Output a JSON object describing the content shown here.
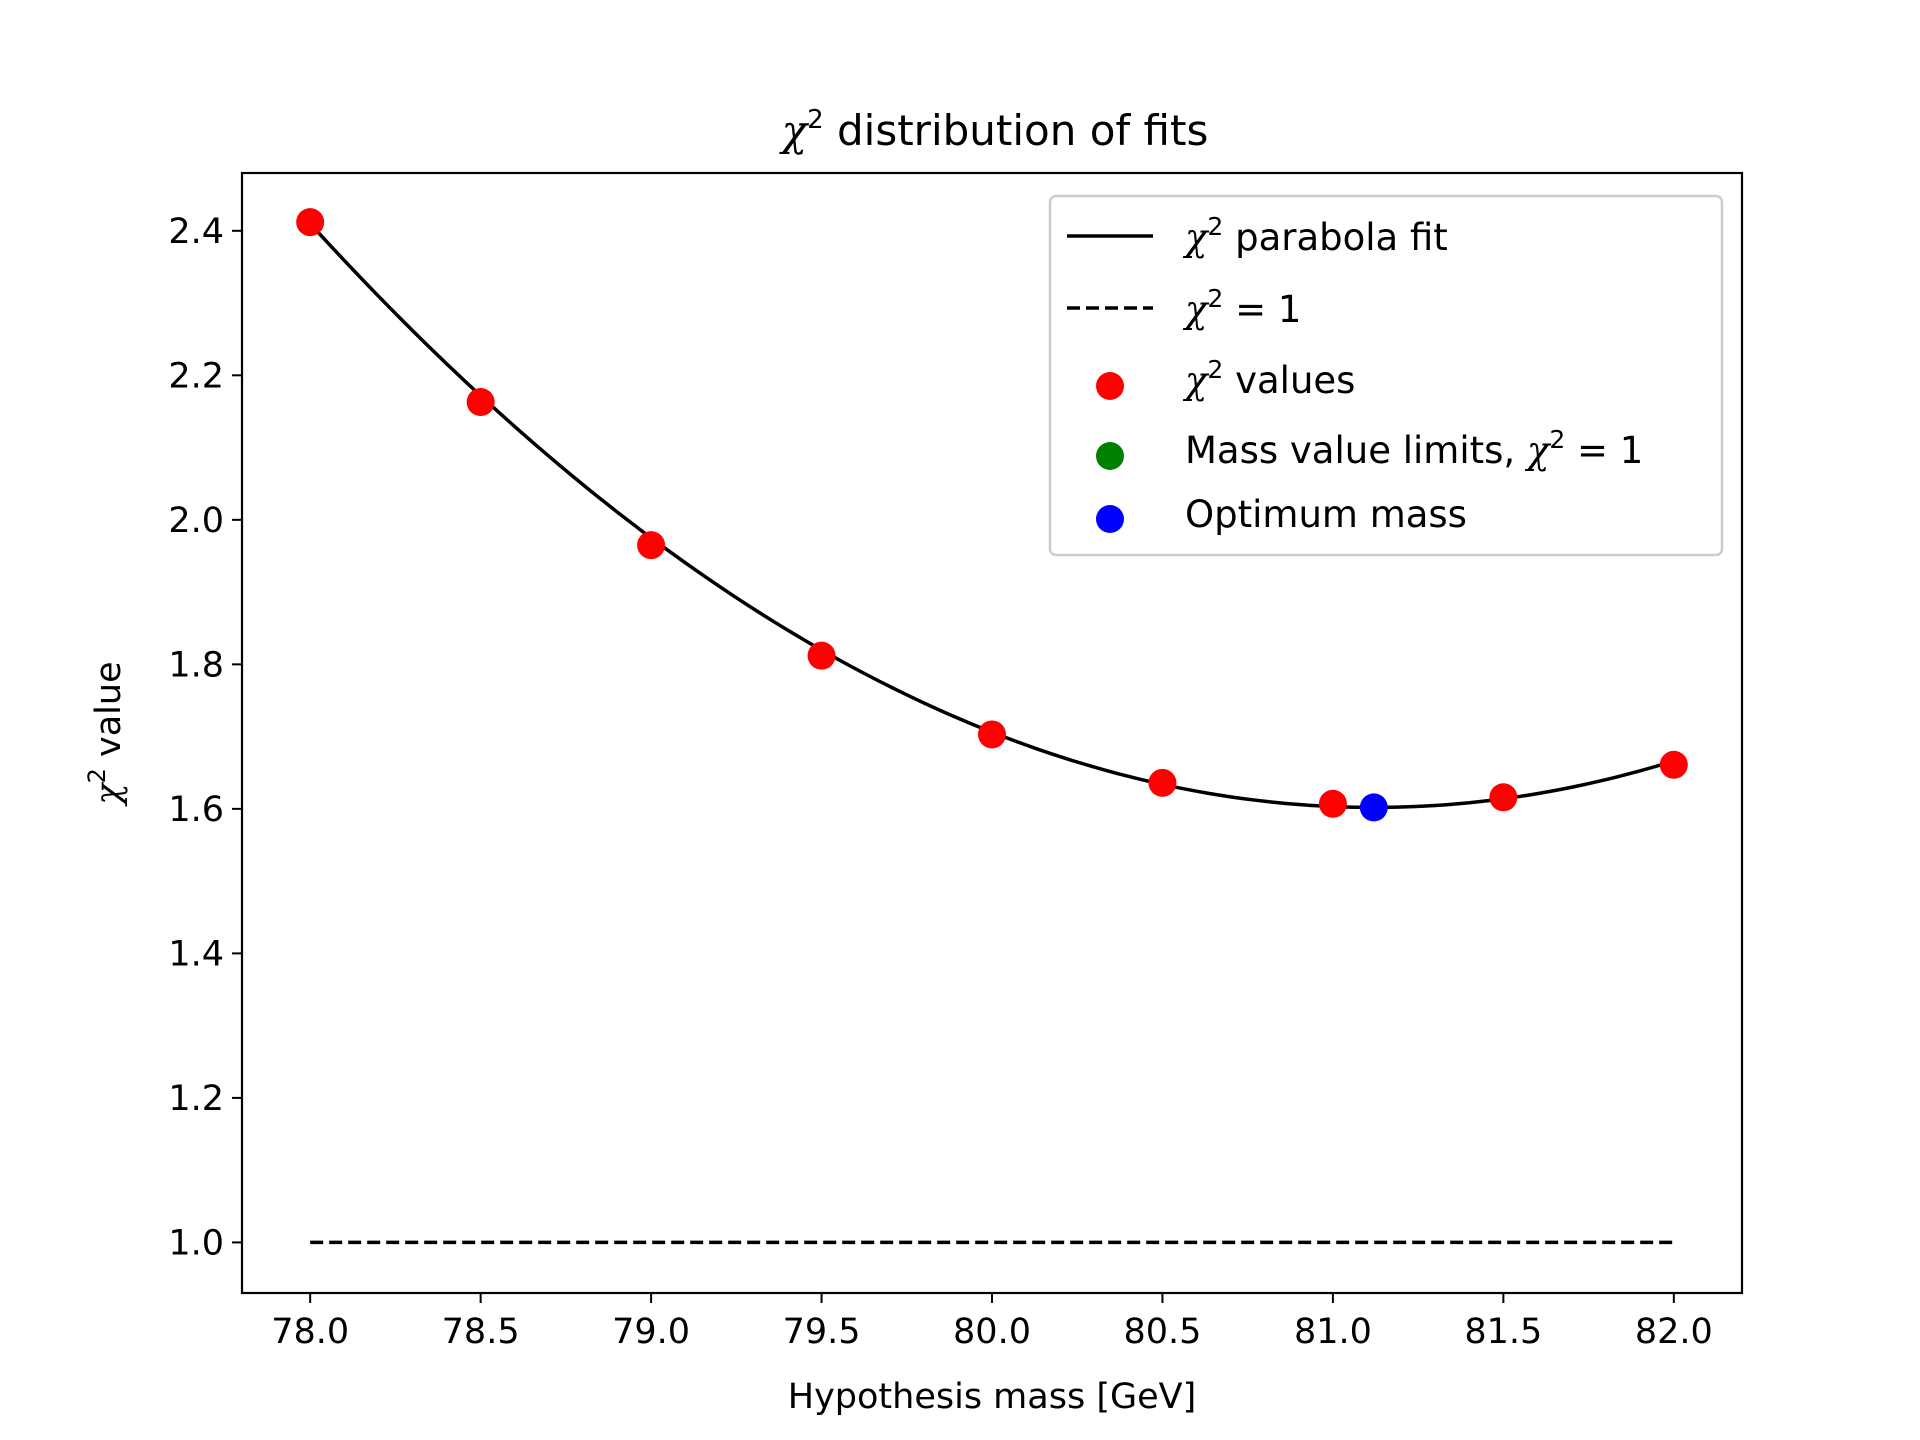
{
  "chart_data": {
    "type": "scatter",
    "title": {
      "symbol": "χ",
      "superscript": "2",
      "text": " distribution of fits"
    },
    "xlabel": "Hypothesis mass [GeV]",
    "ylabel": {
      "symbol": "χ",
      "superscript": "2",
      "text": " value"
    },
    "xlim": [
      77.8,
      82.2
    ],
    "ylim": [
      0.93,
      2.48
    ],
    "x_ticks": [
      78.0,
      78.5,
      79.0,
      79.5,
      80.0,
      80.5,
      81.0,
      81.5,
      82.0
    ],
    "x_tick_labels": [
      "78.0",
      "78.5",
      "79.0",
      "79.5",
      "80.0",
      "80.5",
      "81.0",
      "81.5",
      "82.0"
    ],
    "y_ticks": [
      1.0,
      1.2,
      1.4,
      1.6,
      1.8,
      2.0,
      2.2,
      2.4
    ],
    "y_tick_labels": [
      "1.0",
      "1.2",
      "1.4",
      "1.6",
      "1.8",
      "2.0",
      "2.2",
      "2.4"
    ],
    "grid": false,
    "legend_position": "top-right",
    "series": [
      {
        "name": "parabola fit",
        "legend": {
          "symbol": "χ",
          "superscript": "2",
          "text": " parabola fit"
        },
        "kind": "line",
        "style": "solid",
        "color": "#000000",
        "fit": {
          "vertex_x": 81.12,
          "vertex_y": 1.602,
          "curvature": 0.083
        },
        "x_range": [
          78.0,
          82.0
        ]
      },
      {
        "name": "= 1",
        "legend": {
          "symbol": "χ",
          "superscript": "2",
          "text": " = 1"
        },
        "kind": "line",
        "style": "dashed",
        "color": "#000000",
        "x": [
          78.0,
          82.0
        ],
        "y": [
          1.0,
          1.0
        ]
      },
      {
        "name": "values",
        "legend": {
          "symbol": "χ",
          "superscript": "2",
          "text": " values"
        },
        "kind": "scatter",
        "color": "#ff0000",
        "x": [
          78.0,
          78.5,
          79.0,
          79.5,
          80.0,
          80.5,
          81.0,
          81.5,
          82.0
        ],
        "y": [
          2.412,
          2.163,
          1.965,
          1.812,
          1.703,
          1.636,
          1.607,
          1.616,
          1.661
        ]
      },
      {
        "name": "Mass value limits, = 1",
        "legend": {
          "prefix": "Mass value limits, ",
          "symbol": "χ",
          "superscript": "2",
          "text": " = 1"
        },
        "kind": "scatter",
        "color": "#008000",
        "x": [],
        "y": []
      },
      {
        "name": "Optimum mass",
        "legend": {
          "text": "Optimum mass"
        },
        "kind": "scatter",
        "color": "#0000ff",
        "x": [
          81.12
        ],
        "y": [
          1.602
        ]
      }
    ]
  }
}
